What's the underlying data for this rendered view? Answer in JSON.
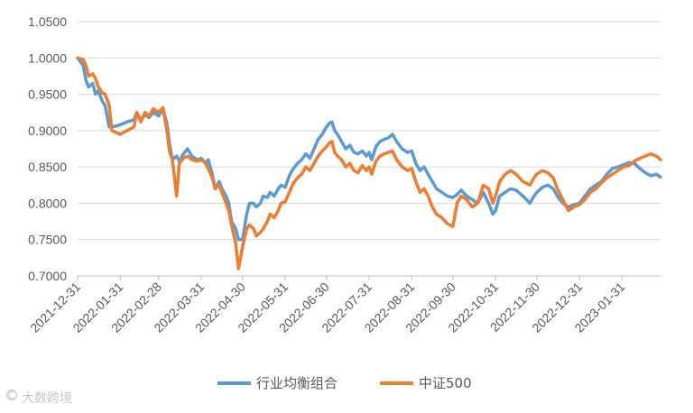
{
  "chart_data": {
    "type": "line",
    "title": "",
    "xlabel": "",
    "ylabel": "",
    "ylim": [
      0.7,
      1.05
    ],
    "ytick_labels": [
      "0.7000",
      "0.7500",
      "0.8000",
      "0.8500",
      "0.9000",
      "0.9500",
      "1.0000",
      "1.0500"
    ],
    "x_tick_labels": [
      "2021-12-31",
      "2022-01-31",
      "2022-02-28",
      "2022-03-31",
      "2022-04-30",
      "2022-05-31",
      "2022-06-30",
      "2022-07-31",
      "2022-08-31",
      "2022-09-30",
      "2022-10-31",
      "2022-11-30",
      "2022-12-31",
      "2023-01-31"
    ],
    "xlim": [
      "2021-12-31",
      "2023-02-28"
    ],
    "grid": "y-only",
    "legend": "bottom",
    "series": [
      {
        "name": "行业均衡组合",
        "color": "#5B9BD5",
        "points": [
          [
            "2021-12-31",
            1.0
          ],
          [
            "2022-01-04",
            0.99
          ],
          [
            "2022-01-06",
            0.97
          ],
          [
            "2022-01-08",
            0.96
          ],
          [
            "2022-01-11",
            0.965
          ],
          [
            "2022-01-13",
            0.95
          ],
          [
            "2022-01-15",
            0.955
          ],
          [
            "2022-01-18",
            0.94
          ],
          [
            "2022-01-20",
            0.935
          ],
          [
            "2022-01-23",
            0.905
          ],
          [
            "2022-01-25",
            0.905
          ],
          [
            "2022-01-31",
            0.908
          ],
          [
            "2022-02-05",
            0.912
          ],
          [
            "2022-02-10",
            0.915
          ],
          [
            "2022-02-12",
            0.925
          ],
          [
            "2022-02-15",
            0.915
          ],
          [
            "2022-02-18",
            0.922
          ],
          [
            "2022-02-21",
            0.918
          ],
          [
            "2022-02-24",
            0.925
          ],
          [
            "2022-02-28",
            0.92
          ],
          [
            "2022-03-03",
            0.93
          ],
          [
            "2022-03-06",
            0.91
          ],
          [
            "2022-03-08",
            0.88
          ],
          [
            "2022-03-10",
            0.86
          ],
          [
            "2022-03-13",
            0.865
          ],
          [
            "2022-03-15",
            0.858
          ],
          [
            "2022-03-18",
            0.868
          ],
          [
            "2022-03-21",
            0.875
          ],
          [
            "2022-03-24",
            0.865
          ],
          [
            "2022-03-28",
            0.86
          ],
          [
            "2022-03-31",
            0.862
          ],
          [
            "2022-04-03",
            0.855
          ],
          [
            "2022-04-05",
            0.86
          ],
          [
            "2022-04-08",
            0.84
          ],
          [
            "2022-04-10",
            0.82
          ],
          [
            "2022-04-13",
            0.83
          ],
          [
            "2022-04-15",
            0.82
          ],
          [
            "2022-04-18",
            0.81
          ],
          [
            "2022-04-20",
            0.8
          ],
          [
            "2022-04-22",
            0.775
          ],
          [
            "2022-04-25",
            0.765
          ],
          [
            "2022-04-27",
            0.75
          ],
          [
            "2022-04-30",
            0.75
          ],
          [
            "2022-05-03",
            0.785
          ],
          [
            "2022-05-05",
            0.8
          ],
          [
            "2022-05-08",
            0.8
          ],
          [
            "2022-05-10",
            0.795
          ],
          [
            "2022-05-13",
            0.8
          ],
          [
            "2022-05-15",
            0.81
          ],
          [
            "2022-05-18",
            0.808
          ],
          [
            "2022-05-20",
            0.815
          ],
          [
            "2022-05-23",
            0.81
          ],
          [
            "2022-05-26",
            0.82
          ],
          [
            "2022-05-28",
            0.825
          ],
          [
            "2022-05-31",
            0.822
          ],
          [
            "2022-06-03",
            0.838
          ],
          [
            "2022-06-06",
            0.848
          ],
          [
            "2022-06-09",
            0.855
          ],
          [
            "2022-06-12",
            0.86
          ],
          [
            "2022-06-15",
            0.868
          ],
          [
            "2022-06-18",
            0.862
          ],
          [
            "2022-06-21",
            0.875
          ],
          [
            "2022-06-24",
            0.888
          ],
          [
            "2022-06-27",
            0.895
          ],
          [
            "2022-06-30",
            0.905
          ],
          [
            "2022-07-02",
            0.91
          ],
          [
            "2022-07-04",
            0.912
          ],
          [
            "2022-07-06",
            0.9
          ],
          [
            "2022-07-08",
            0.895
          ],
          [
            "2022-07-11",
            0.885
          ],
          [
            "2022-07-14",
            0.875
          ],
          [
            "2022-07-17",
            0.88
          ],
          [
            "2022-07-20",
            0.87
          ],
          [
            "2022-07-23",
            0.868
          ],
          [
            "2022-07-26",
            0.872
          ],
          [
            "2022-07-29",
            0.865
          ],
          [
            "2022-07-31",
            0.87
          ],
          [
            "2022-08-02",
            0.86
          ],
          [
            "2022-08-05",
            0.878
          ],
          [
            "2022-08-08",
            0.885
          ],
          [
            "2022-08-11",
            0.888
          ],
          [
            "2022-08-14",
            0.89
          ],
          [
            "2022-08-17",
            0.895
          ],
          [
            "2022-08-20",
            0.885
          ],
          [
            "2022-08-24",
            0.875
          ],
          [
            "2022-08-28",
            0.87
          ],
          [
            "2022-08-31",
            0.872
          ],
          [
            "2022-09-03",
            0.855
          ],
          [
            "2022-09-06",
            0.845
          ],
          [
            "2022-09-09",
            0.85
          ],
          [
            "2022-09-12",
            0.84
          ],
          [
            "2022-09-15",
            0.83
          ],
          [
            "2022-09-18",
            0.82
          ],
          [
            "2022-09-22",
            0.815
          ],
          [
            "2022-09-26",
            0.81
          ],
          [
            "2022-09-30",
            0.808
          ],
          [
            "2022-10-03",
            0.812
          ],
          [
            "2022-10-06",
            0.818
          ],
          [
            "2022-10-10",
            0.81
          ],
          [
            "2022-10-14",
            0.805
          ],
          [
            "2022-10-18",
            0.8
          ],
          [
            "2022-10-22",
            0.815
          ],
          [
            "2022-10-26",
            0.8
          ],
          [
            "2022-10-29",
            0.785
          ],
          [
            "2022-10-31",
            0.79
          ],
          [
            "2022-11-03",
            0.81
          ],
          [
            "2022-11-07",
            0.815
          ],
          [
            "2022-11-11",
            0.82
          ],
          [
            "2022-11-15",
            0.818
          ],
          [
            "2022-11-20",
            0.81
          ],
          [
            "2022-11-25",
            0.8
          ],
          [
            "2022-11-28",
            0.81
          ],
          [
            "2022-11-30",
            0.815
          ],
          [
            "2022-12-04",
            0.822
          ],
          [
            "2022-12-08",
            0.825
          ],
          [
            "2022-12-12",
            0.82
          ],
          [
            "2022-12-15",
            0.81
          ],
          [
            "2022-12-19",
            0.8
          ],
          [
            "2022-12-23",
            0.795
          ],
          [
            "2022-12-27",
            0.798
          ],
          [
            "2022-12-31",
            0.8
          ],
          [
            "2023-01-04",
            0.81
          ],
          [
            "2023-01-08",
            0.82
          ],
          [
            "2023-01-12",
            0.825
          ],
          [
            "2023-01-16",
            0.83
          ],
          [
            "2023-01-20",
            0.84
          ],
          [
            "2023-01-24",
            0.848
          ],
          [
            "2023-01-28",
            0.85
          ],
          [
            "2023-02-01",
            0.853
          ],
          [
            "2023-02-05",
            0.856
          ],
          [
            "2023-02-09",
            0.855
          ],
          [
            "2023-02-13",
            0.848
          ],
          [
            "2023-02-17",
            0.842
          ],
          [
            "2023-02-21",
            0.838
          ],
          [
            "2023-02-25",
            0.84
          ],
          [
            "2023-02-28",
            0.836
          ]
        ]
      },
      {
        "name": "中证500",
        "color": "#ED7D31",
        "points": [
          [
            "2021-12-31",
            1.0
          ],
          [
            "2022-01-04",
            0.998
          ],
          [
            "2022-01-06",
            0.99
          ],
          [
            "2022-01-08",
            0.975
          ],
          [
            "2022-01-11",
            0.978
          ],
          [
            "2022-01-13",
            0.972
          ],
          [
            "2022-01-15",
            0.96
          ],
          [
            "2022-01-18",
            0.952
          ],
          [
            "2022-01-20",
            0.95
          ],
          [
            "2022-01-23",
            0.935
          ],
          [
            "2022-01-25",
            0.9
          ],
          [
            "2022-01-31",
            0.895
          ],
          [
            "2022-02-05",
            0.9
          ],
          [
            "2022-02-10",
            0.905
          ],
          [
            "2022-02-12",
            0.925
          ],
          [
            "2022-02-15",
            0.912
          ],
          [
            "2022-02-18",
            0.925
          ],
          [
            "2022-02-21",
            0.92
          ],
          [
            "2022-02-24",
            0.93
          ],
          [
            "2022-02-28",
            0.925
          ],
          [
            "2022-03-03",
            0.932
          ],
          [
            "2022-03-06",
            0.9
          ],
          [
            "2022-03-08",
            0.87
          ],
          [
            "2022-03-10",
            0.86
          ],
          [
            "2022-03-13",
            0.81
          ],
          [
            "2022-03-15",
            0.855
          ],
          [
            "2022-03-18",
            0.862
          ],
          [
            "2022-03-21",
            0.865
          ],
          [
            "2022-03-24",
            0.86
          ],
          [
            "2022-03-28",
            0.858
          ],
          [
            "2022-03-31",
            0.86
          ],
          [
            "2022-04-03",
            0.855
          ],
          [
            "2022-04-05",
            0.848
          ],
          [
            "2022-04-08",
            0.835
          ],
          [
            "2022-04-10",
            0.82
          ],
          [
            "2022-04-13",
            0.825
          ],
          [
            "2022-04-15",
            0.815
          ],
          [
            "2022-04-18",
            0.8
          ],
          [
            "2022-04-20",
            0.79
          ],
          [
            "2022-04-22",
            0.77
          ],
          [
            "2022-04-25",
            0.745
          ],
          [
            "2022-04-27",
            0.71
          ],
          [
            "2022-04-30",
            0.74
          ],
          [
            "2022-05-03",
            0.765
          ],
          [
            "2022-05-05",
            0.77
          ],
          [
            "2022-05-08",
            0.765
          ],
          [
            "2022-05-10",
            0.755
          ],
          [
            "2022-05-13",
            0.76
          ],
          [
            "2022-05-15",
            0.765
          ],
          [
            "2022-05-18",
            0.775
          ],
          [
            "2022-05-20",
            0.785
          ],
          [
            "2022-05-23",
            0.78
          ],
          [
            "2022-05-26",
            0.79
          ],
          [
            "2022-05-28",
            0.8
          ],
          [
            "2022-05-31",
            0.802
          ],
          [
            "2022-06-03",
            0.815
          ],
          [
            "2022-06-06",
            0.828
          ],
          [
            "2022-06-09",
            0.835
          ],
          [
            "2022-06-12",
            0.84
          ],
          [
            "2022-06-15",
            0.85
          ],
          [
            "2022-06-18",
            0.845
          ],
          [
            "2022-06-21",
            0.855
          ],
          [
            "2022-06-24",
            0.865
          ],
          [
            "2022-06-27",
            0.872
          ],
          [
            "2022-06-30",
            0.878
          ],
          [
            "2022-07-02",
            0.883
          ],
          [
            "2022-07-04",
            0.885
          ],
          [
            "2022-07-06",
            0.87
          ],
          [
            "2022-07-08",
            0.865
          ],
          [
            "2022-07-11",
            0.86
          ],
          [
            "2022-07-14",
            0.85
          ],
          [
            "2022-07-17",
            0.855
          ],
          [
            "2022-07-20",
            0.845
          ],
          [
            "2022-07-23",
            0.842
          ],
          [
            "2022-07-26",
            0.852
          ],
          [
            "2022-07-29",
            0.845
          ],
          [
            "2022-07-31",
            0.85
          ],
          [
            "2022-08-02",
            0.84
          ],
          [
            "2022-08-05",
            0.858
          ],
          [
            "2022-08-08",
            0.865
          ],
          [
            "2022-08-11",
            0.868
          ],
          [
            "2022-08-14",
            0.87
          ],
          [
            "2022-08-17",
            0.872
          ],
          [
            "2022-08-20",
            0.86
          ],
          [
            "2022-08-24",
            0.85
          ],
          [
            "2022-08-28",
            0.845
          ],
          [
            "2022-08-31",
            0.848
          ],
          [
            "2022-09-03",
            0.83
          ],
          [
            "2022-09-06",
            0.815
          ],
          [
            "2022-09-09",
            0.82
          ],
          [
            "2022-09-12",
            0.81
          ],
          [
            "2022-09-15",
            0.795
          ],
          [
            "2022-09-18",
            0.785
          ],
          [
            "2022-09-22",
            0.78
          ],
          [
            "2022-09-26",
            0.772
          ],
          [
            "2022-09-30",
            0.768
          ],
          [
            "2022-10-03",
            0.8
          ],
          [
            "2022-10-06",
            0.81
          ],
          [
            "2022-10-10",
            0.805
          ],
          [
            "2022-10-14",
            0.795
          ],
          [
            "2022-10-18",
            0.8
          ],
          [
            "2022-10-22",
            0.825
          ],
          [
            "2022-10-26",
            0.82
          ],
          [
            "2022-10-29",
            0.8
          ],
          [
            "2022-10-31",
            0.81
          ],
          [
            "2022-11-03",
            0.83
          ],
          [
            "2022-11-07",
            0.84
          ],
          [
            "2022-11-11",
            0.845
          ],
          [
            "2022-11-15",
            0.84
          ],
          [
            "2022-11-20",
            0.83
          ],
          [
            "2022-11-25",
            0.825
          ],
          [
            "2022-11-28",
            0.835
          ],
          [
            "2022-11-30",
            0.84
          ],
          [
            "2022-12-04",
            0.845
          ],
          [
            "2022-12-08",
            0.842
          ],
          [
            "2022-12-12",
            0.835
          ],
          [
            "2022-12-15",
            0.82
          ],
          [
            "2022-12-19",
            0.805
          ],
          [
            "2022-12-23",
            0.79
          ],
          [
            "2022-12-27",
            0.795
          ],
          [
            "2022-12-31",
            0.798
          ],
          [
            "2023-01-04",
            0.805
          ],
          [
            "2023-01-08",
            0.815
          ],
          [
            "2023-01-12",
            0.82
          ],
          [
            "2023-01-16",
            0.828
          ],
          [
            "2023-01-20",
            0.835
          ],
          [
            "2023-01-24",
            0.84
          ],
          [
            "2023-01-28",
            0.845
          ],
          [
            "2023-02-01",
            0.85
          ],
          [
            "2023-02-05",
            0.852
          ],
          [
            "2023-02-09",
            0.858
          ],
          [
            "2023-02-13",
            0.862
          ],
          [
            "2023-02-17",
            0.865
          ],
          [
            "2023-02-21",
            0.868
          ],
          [
            "2023-02-25",
            0.865
          ],
          [
            "2023-02-28",
            0.86
          ]
        ]
      }
    ]
  },
  "watermark": {
    "text": "大数跨境",
    "icon": "brand-logo-icon"
  }
}
